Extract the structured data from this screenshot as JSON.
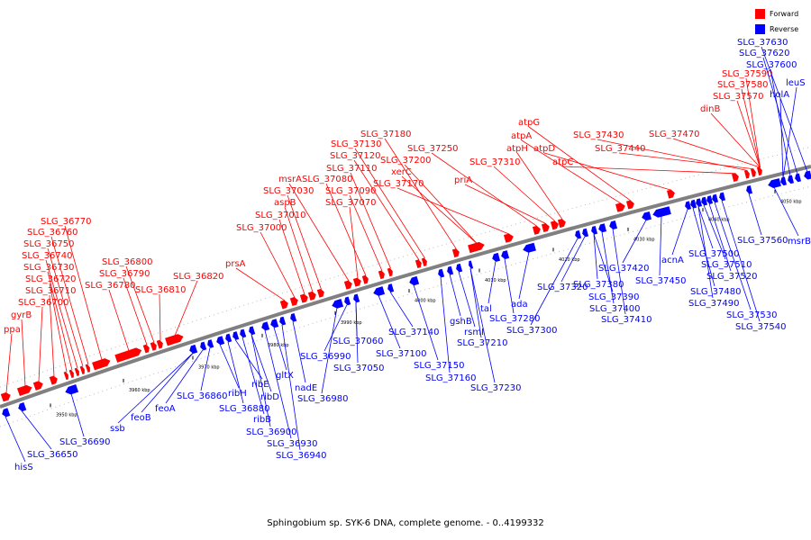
{
  "caption": "Sphingobium sp. SYK-6 DNA, complete genome. - 0..4199332",
  "legend": {
    "forward": {
      "label": "Forward",
      "color": "#ff0000"
    },
    "reverse": {
      "label": "Reverse",
      "color": "#0000ff"
    }
  },
  "backbone_color": "#808080",
  "axis_ticks": [
    "3950 kbp",
    "3960 kbp",
    "3970 kbp",
    "3980 kbp",
    "3990 kbp",
    "4000 kbp",
    "4010 kbp",
    "4020 kbp",
    "4030 kbp",
    "4040 kbp",
    "4050 kbp"
  ],
  "forward_labels": [
    "ppa",
    "gyrB",
    "SLG_36700",
    "SLG_36710",
    "SLG_36720",
    "SLG_36730",
    "SLG_36740",
    "SLG_36750",
    "SLG_36760",
    "SLG_36770",
    "SLG_36780",
    "SLG_36790",
    "SLG_36800",
    "SLG_36810",
    "SLG_36820",
    "prsA",
    "SLG_37000",
    "SLG_37010",
    "aspB",
    "SLG_37030",
    "msrA",
    "SLG_37070",
    "SLG_37080",
    "SLG_37090",
    "SLG_37110",
    "SLG_37120",
    "SLG_37130",
    "SLG_37180",
    "xerC",
    "SLG_37170",
    "SLG_37200",
    "SLG_37250",
    "priA",
    "SLG_37310",
    "atpH",
    "atpA",
    "atpG",
    "atpD",
    "atpC",
    "SLG_37430",
    "SLG_37440",
    "SLG_37470",
    "dinB",
    "SLG_37570",
    "SLG_37580",
    "SLG_37590"
  ],
  "reverse_labels": [
    "hisS",
    "SLG_36650",
    "SLG_36690",
    "ssb",
    "feoB",
    "feoA",
    "SLG_36860",
    "ribH",
    "SLG_36880",
    "ribE",
    "ribB",
    "ribD",
    "SLG_36900",
    "SLG_36930",
    "gltX",
    "SLG_36940",
    "nadE",
    "SLG_36980",
    "SLG_36990",
    "SLG_37050",
    "SLG_37060",
    "SLG_37100",
    "SLG_37140",
    "SLG_37150",
    "SLG_37160",
    "gshB",
    "rsmI",
    "SLG_37210",
    "SLG_37230",
    "tal",
    "SLG_37280",
    "ada",
    "SLG_37300",
    "SLG_37320",
    "SLG_37380",
    "SLG_37390",
    "SLG_37400",
    "SLG_37410",
    "SLG_37420",
    "SLG_37450",
    "acnA",
    "SLG_37480",
    "SLG_37490",
    "SLG_37500",
    "SLG_37510",
    "SLG_37520",
    "SLG_37530",
    "SLG_37540",
    "SLG_37560",
    "msrB",
    "holA",
    "leuS",
    "SLG_37600",
    "SLG_37620",
    "SLG_37630"
  ]
}
